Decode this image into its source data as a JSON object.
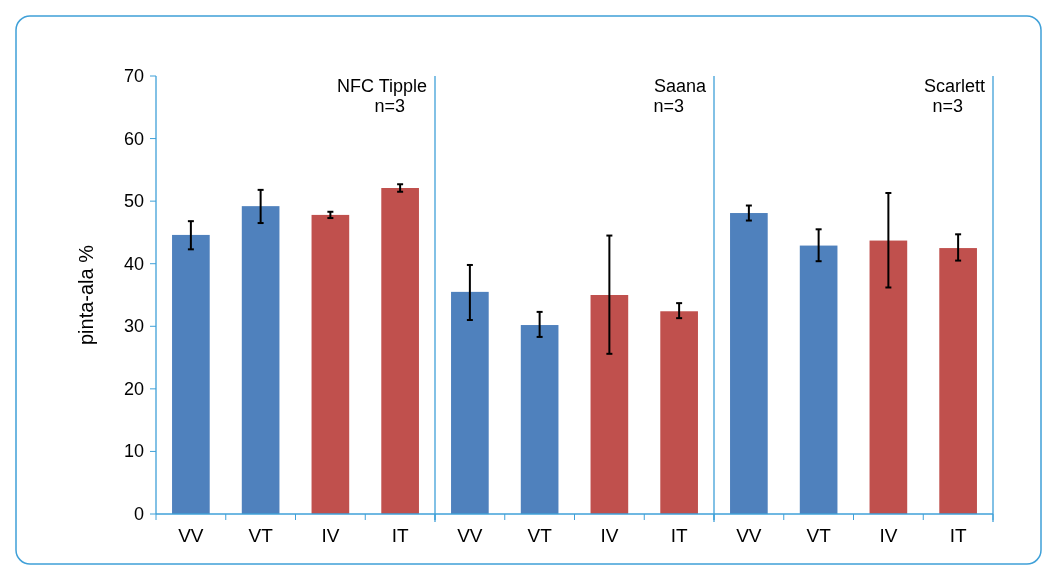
{
  "chart_data": [
    {
      "type": "bar",
      "title": "NFC Tipple",
      "subtitle": "n=3",
      "ylabel": "pinta-ala %",
      "categories": [
        "VV",
        "VT",
        "IV",
        "IT"
      ],
      "values": [
        44.6,
        49.2,
        47.8,
        52.1
      ],
      "colors": [
        "#4f81bd",
        "#4f81bd",
        "#c0504d",
        "#c0504d"
      ],
      "errors": [
        [
          42.3,
          46.8
        ],
        [
          46.5,
          51.8
        ],
        [
          47.3,
          48.3
        ],
        [
          51.5,
          52.7
        ]
      ],
      "ylim": [
        0,
        70
      ],
      "yticks": [
        0,
        10,
        20,
        30,
        40,
        50,
        60,
        70
      ]
    },
    {
      "type": "bar",
      "title": "Saana",
      "subtitle": "n=3",
      "categories": [
        "VV",
        "VT",
        "IV",
        "IT"
      ],
      "values": [
        35.5,
        30.2,
        35,
        32.4
      ],
      "colors": [
        "#4f81bd",
        "#4f81bd",
        "#c0504d",
        "#c0504d"
      ],
      "errors": [
        [
          31,
          39.8
        ],
        [
          28.3,
          32.3
        ],
        [
          25.6,
          44.5
        ],
        [
          31.3,
          33.7
        ]
      ],
      "ylim": [
        0,
        70
      ],
      "tick_labels": "x"
    },
    {
      "type": "bar",
      "title": "Scarlett",
      "subtitle": "n=3",
      "categories": [
        "VV",
        "VT",
        "IV",
        "IT"
      ],
      "values": [
        48.1,
        42.9,
        43.7,
        42.5
      ],
      "colors": [
        "#4f81bd",
        "#4f81bd",
        "#c0504d",
        "#c0504d"
      ],
      "errors": [
        [
          46.9,
          49.3
        ],
        [
          40.4,
          45.5
        ],
        [
          36.2,
          51.3
        ],
        [
          40.5,
          44.7
        ]
      ],
      "ylim": [
        0,
        70
      ],
      "tick_labels": "x"
    }
  ]
}
